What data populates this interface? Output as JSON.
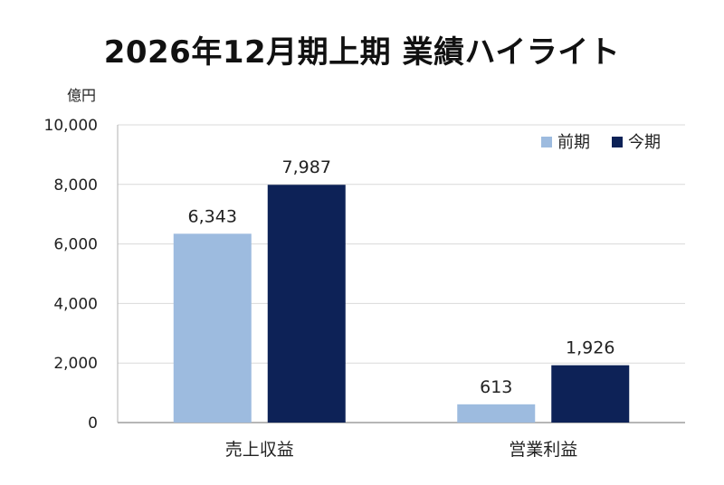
{
  "chart_data": {
    "type": "bar",
    "title": "2026年12月期上期 業績ハイライト",
    "ylabel": "億円",
    "xlabel": "",
    "categories": [
      "売上収益",
      "営業利益"
    ],
    "series": [
      {
        "name": "前期",
        "values": [
          6343,
          613
        ],
        "labels": [
          "6,343",
          "613"
        ],
        "color": "#9dbbdf"
      },
      {
        "name": "今期",
        "values": [
          7987,
          1926
        ],
        "labels": [
          "7,987",
          "1,926"
        ],
        "color": "#0d2257"
      }
    ],
    "ylim": [
      0,
      10000
    ],
    "yticks": [
      0,
      2000,
      4000,
      6000,
      8000,
      10000
    ],
    "ytick_labels": [
      "0",
      "2,000",
      "4,000",
      "6,000",
      "8,000",
      "10,000"
    ],
    "grid": true,
    "legend_position": "top-right"
  }
}
